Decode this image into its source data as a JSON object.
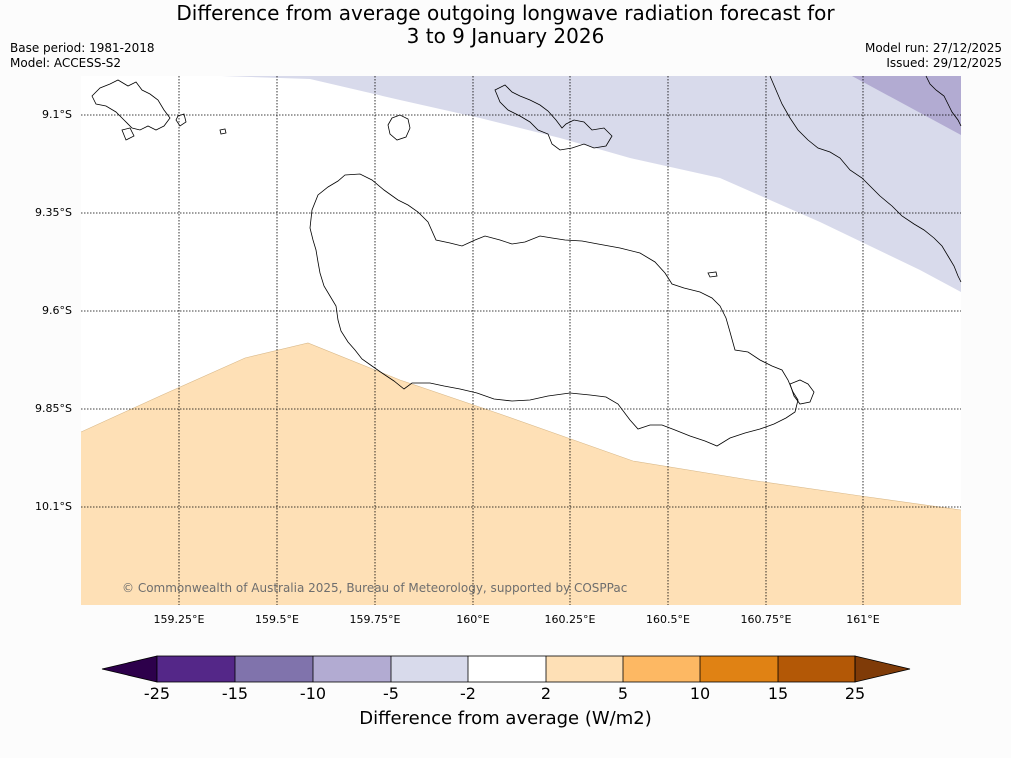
{
  "header": {
    "title_line1": "Difference from average outgoing longwave radiation forecast for",
    "title_line2": "3 to 9 January 2026",
    "base_period": "Base period: 1981-2018",
    "model": "Model: ACCESS-S2",
    "model_run": "Model run: 27/12/2025",
    "issued": "Issued: 29/12/2025"
  },
  "map": {
    "lat_labels": [
      "9.1°S",
      "9.35°S",
      "9.6°S",
      "9.85°S",
      "10.1°S"
    ],
    "lon_labels": [
      "159.25°E",
      "159.5°E",
      "159.75°E",
      "160°E",
      "160.25°E",
      "160.5°E",
      "160.75°E",
      "161°E"
    ],
    "copyright": "© Commonwealth of Australia 2025, Bureau of Meteorology, supported by COSPPac"
  },
  "colorbar": {
    "ticks": [
      "-25",
      "-15",
      "-10",
      "-5",
      "-2",
      "2",
      "5",
      "10",
      "15",
      "25"
    ],
    "colors": {
      "below_min": "#2d004b",
      "bins": [
        "#542788",
        "#8073ac",
        "#b2abd2",
        "#d8daeb",
        "#ffffff",
        "#fee0b6",
        "#fdb863",
        "#e08214",
        "#b35806"
      ],
      "above_max": "#7f3b08"
    },
    "label": "Difference from average (W/m2)"
  }
}
